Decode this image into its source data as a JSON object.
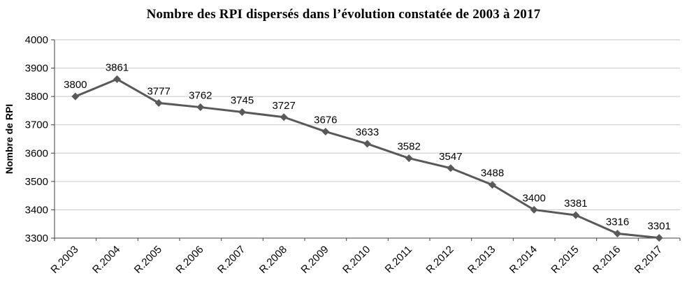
{
  "chart_data": {
    "type": "line",
    "title": "Nombre des RPI dispersés dans l’évolution constatée de 2003 à 2017",
    "ylabel": "Nombre de RPI",
    "xlabel": "",
    "categories": [
      "R.2003",
      "R.2004",
      "R.2005",
      "R.2006",
      "R.2007",
      "R.2008",
      "R.2009",
      "R.2010",
      "R.2011",
      "R.2012",
      "R.2013",
      "R.2014",
      "R.2015",
      "R.2016",
      "R.2017"
    ],
    "values": [
      3800,
      3861,
      3777,
      3762,
      3745,
      3727,
      3676,
      3633,
      3582,
      3547,
      3488,
      3400,
      3381,
      3316,
      3301
    ],
    "ylim": [
      3300,
      4000
    ],
    "ytick_step": 100,
    "grid": true,
    "legend": "none",
    "marker": "diamond",
    "colors": {
      "line": "#595959",
      "marker": "#595959",
      "grid": "#c6c6c6",
      "axis": "#3f3f3f",
      "tick_label": "#000000",
      "data_label": "#000000",
      "title": "#000000"
    }
  }
}
